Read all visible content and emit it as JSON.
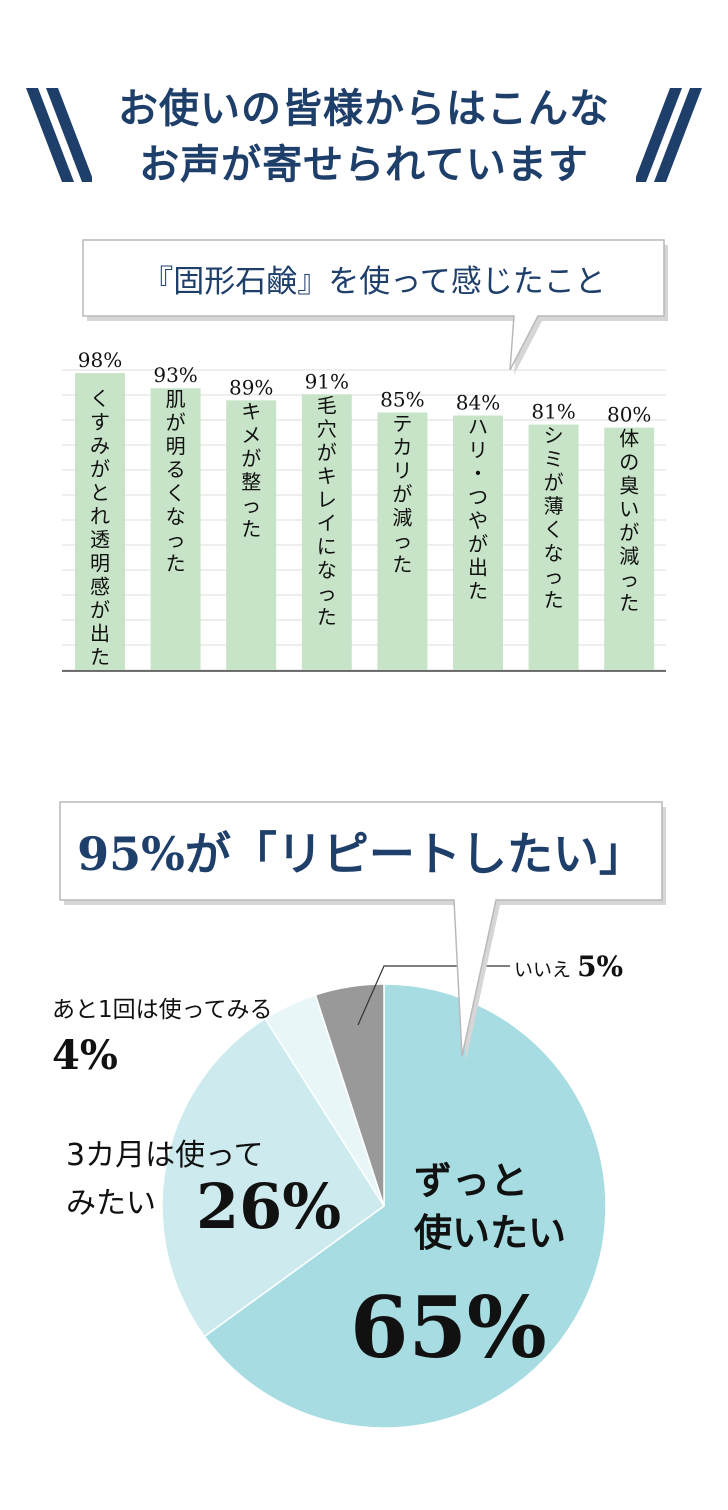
{
  "headline": {
    "line1": "お使いの皆様からはこんな",
    "line2": "お声が寄せられています"
  },
  "colors": {
    "navy": "#1f3f6b",
    "bar": "#c7e4c8",
    "pie_zutto": "#a7dde2",
    "pie_3months": "#cdebee",
    "pie_once": "#e9f6f8",
    "pie_no": "#999999"
  },
  "chart_data": [
    {
      "type": "bar",
      "title": "『固形石鹸』を使って感じたこと",
      "categories": [
        "くすみがとれ透明感が出た",
        "肌が明るくなった",
        "キメが整った",
        "毛穴がキレイになった",
        "テカリが減った",
        "ハリ・つやが出た",
        "シミが薄くなった",
        "体の臭いが減った"
      ],
      "values": [
        98,
        93,
        89,
        91,
        85,
        84,
        81,
        80
      ],
      "value_labels": [
        "98%",
        "93%",
        "89%",
        "91%",
        "85%",
        "84%",
        "81%",
        "80%"
      ],
      "ylim": [
        0,
        100
      ],
      "grid": true
    },
    {
      "type": "pie",
      "title": "95%が「リピートしたい」",
      "slices": [
        {
          "label": "ずっと使いたい",
          "label_line1": "ずっと",
          "label_line2": "使いたい",
          "value": 65,
          "pct": "65%"
        },
        {
          "label": "3カ月は使ってみたい",
          "label_line1": "3カ月は使って",
          "label_line2": "みたい",
          "value": 26,
          "pct": "26%"
        },
        {
          "label": "あと1回は使ってみる",
          "value": 4,
          "pct": "4%"
        },
        {
          "label": "いいえ",
          "value": 5,
          "pct": "5%"
        }
      ]
    }
  ]
}
